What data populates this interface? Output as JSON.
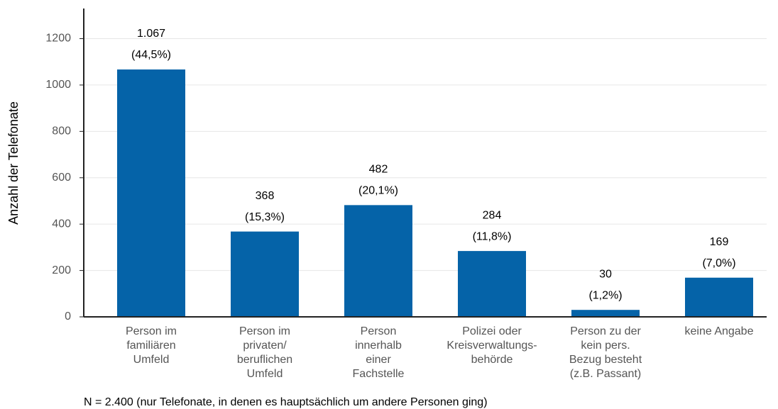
{
  "chart_data": {
    "type": "bar",
    "y_label": "Anzahl der Telefonate",
    "note": "N = 2.400 (nur Telefonate, in denen es hauptsächlich um andere Personen ging)",
    "categories": [
      [
        "Person im",
        "familiären",
        "Umfeld"
      ],
      [
        "Person im",
        "privaten/",
        "beruflichen",
        "Umfeld"
      ],
      [
        "Person",
        "innerhalb",
        "einer",
        "Fachstelle"
      ],
      [
        "Polizei oder",
        "Kreisverwaltungs-",
        "behörde"
      ],
      [
        "Person zu der",
        "kein pers.",
        "Bezug besteht",
        "(z.B. Passant)"
      ],
      [
        "keine Angabe"
      ]
    ],
    "values": [
      1067,
      368,
      482,
      284,
      30,
      169
    ],
    "value_labels": [
      "1.067",
      "368",
      "482",
      "284",
      "30",
      "169"
    ],
    "share_labels": [
      "(44,5%)",
      "(15,3%)",
      "(20,1%)",
      "(11,8%)",
      "(1,2%)",
      "(7,0%)"
    ],
    "color": "#0563a8",
    "ylim": [
      0,
      1330
    ],
    "yticks": [
      0,
      200,
      400,
      600,
      800,
      1000,
      1200
    ],
    "grid": true
  }
}
